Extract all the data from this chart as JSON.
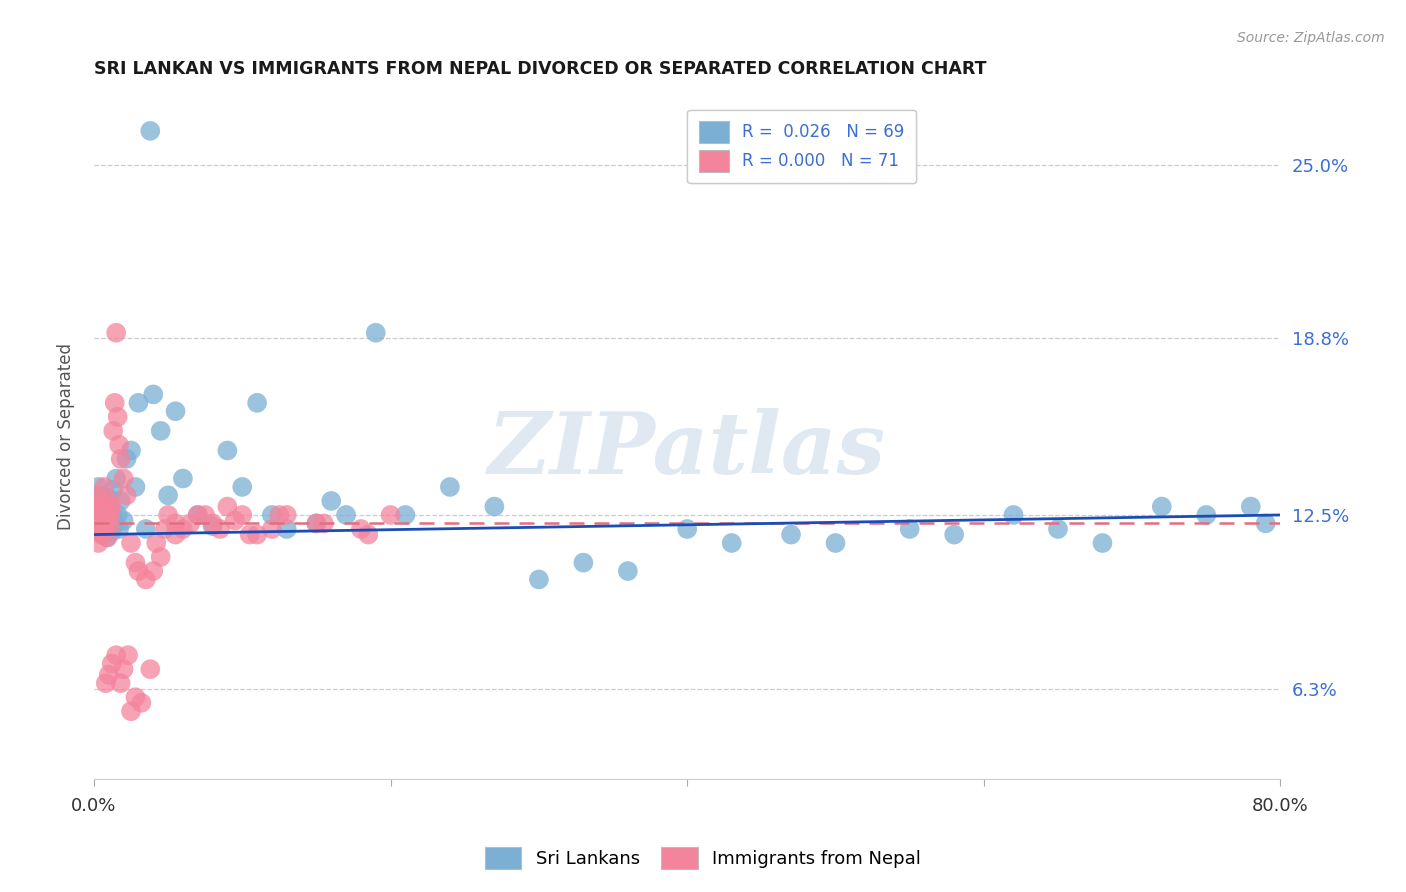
{
  "title": "SRI LANKAN VS IMMIGRANTS FROM NEPAL DIVORCED OR SEPARATED CORRELATION CHART",
  "source": "Source: ZipAtlas.com",
  "ylabel": "Divorced or Separated",
  "ytick_labels": [
    "6.3%",
    "12.5%",
    "18.8%",
    "25.0%"
  ],
  "ytick_values": [
    6.3,
    12.5,
    18.8,
    25.0
  ],
  "legend_entries": [
    {
      "label_r": "R =  0.026",
      "label_n": "  N = 69",
      "color": "#a8c4e0"
    },
    {
      "label_r": "R = 0.000",
      "label_n": "  N = 71",
      "color": "#f4a7b9"
    }
  ],
  "legend_bottom": [
    "Sri Lankans",
    "Immigrants from Nepal"
  ],
  "sri_lankans_color": "#7bafd4",
  "nepal_color": "#f4849c",
  "regression_blue_color": "#1a4db5",
  "regression_pink_color": "#e07080",
  "watermark": "ZIPatlas",
  "background_color": "#ffffff",
  "xmin": 0.0,
  "xmax": 80.0,
  "ymin": 3.1,
  "ymax": 27.5,
  "sri_lankans_x": [
    0.2,
    0.3,
    0.3,
    0.4,
    0.4,
    0.5,
    0.5,
    0.6,
    0.6,
    0.7,
    0.7,
    0.8,
    0.8,
    0.9,
    0.9,
    1.0,
    1.0,
    1.1,
    1.1,
    1.2,
    1.2,
    1.3,
    1.4,
    1.5,
    1.6,
    1.7,
    1.8,
    2.0,
    2.2,
    2.5,
    2.8,
    3.0,
    3.5,
    4.0,
    4.5,
    5.0,
    5.5,
    6.0,
    7.0,
    8.0,
    9.0,
    10.0,
    11.0,
    12.0,
    13.0,
    15.0,
    16.0,
    17.0,
    19.0,
    21.0,
    24.0,
    27.0,
    30.0,
    33.0,
    36.0,
    40.0,
    43.0,
    47.0,
    50.0,
    55.0,
    58.0,
    62.0,
    65.0,
    68.0,
    72.0,
    75.0,
    78.0,
    79.0,
    3.8
  ],
  "sri_lankans_y": [
    12.3,
    12.8,
    13.5,
    11.9,
    12.5,
    12.0,
    13.2,
    12.4,
    11.8,
    12.6,
    13.0,
    12.1,
    12.9,
    12.5,
    11.7,
    12.3,
    13.1,
    12.8,
    12.0,
    12.5,
    11.9,
    13.4,
    12.2,
    13.8,
    12.5,
    12.0,
    13.0,
    12.3,
    14.5,
    14.8,
    13.5,
    16.5,
    12.0,
    16.8,
    15.5,
    13.2,
    16.2,
    13.8,
    12.5,
    12.1,
    14.8,
    13.5,
    16.5,
    12.5,
    12.0,
    12.2,
    13.0,
    12.5,
    19.0,
    12.5,
    13.5,
    12.8,
    10.2,
    10.8,
    10.5,
    12.0,
    11.5,
    11.8,
    11.5,
    12.0,
    11.8,
    12.5,
    12.0,
    11.5,
    12.8,
    12.5,
    12.8,
    12.2,
    26.2
  ],
  "nepal_x": [
    0.1,
    0.2,
    0.2,
    0.3,
    0.3,
    0.4,
    0.4,
    0.5,
    0.5,
    0.6,
    0.6,
    0.7,
    0.7,
    0.8,
    0.8,
    0.9,
    0.9,
    1.0,
    1.0,
    1.1,
    1.1,
    1.2,
    1.3,
    1.4,
    1.5,
    1.6,
    1.7,
    1.8,
    2.0,
    2.2,
    2.5,
    2.8,
    3.0,
    3.5,
    4.0,
    4.5,
    5.0,
    5.5,
    6.0,
    7.0,
    8.0,
    9.0,
    10.0,
    11.0,
    12.0,
    13.0,
    15.0,
    18.0,
    20.0,
    0.8,
    1.0,
    1.2,
    1.5,
    1.8,
    2.0,
    2.3,
    2.5,
    2.8,
    3.2,
    3.8,
    4.2,
    4.8,
    5.5,
    6.5,
    7.5,
    8.5,
    9.5,
    10.5,
    12.5,
    15.5,
    18.5
  ],
  "nepal_y": [
    12.5,
    12.0,
    13.2,
    12.8,
    11.5,
    12.3,
    13.0,
    11.8,
    12.5,
    12.2,
    11.9,
    12.8,
    13.5,
    12.0,
    12.5,
    11.7,
    12.3,
    12.8,
    13.0,
    12.5,
    12.1,
    12.8,
    15.5,
    16.5,
    19.0,
    16.0,
    15.0,
    14.5,
    13.8,
    13.2,
    11.5,
    10.8,
    10.5,
    10.2,
    10.5,
    11.0,
    12.5,
    12.2,
    12.0,
    12.5,
    12.2,
    12.8,
    12.5,
    11.8,
    12.0,
    12.5,
    12.2,
    12.0,
    12.5,
    6.5,
    6.8,
    7.2,
    7.5,
    6.5,
    7.0,
    7.5,
    5.5,
    6.0,
    5.8,
    7.0,
    11.5,
    12.0,
    11.8,
    12.2,
    12.5,
    12.0,
    12.3,
    11.8,
    12.5,
    12.2,
    11.8
  ]
}
